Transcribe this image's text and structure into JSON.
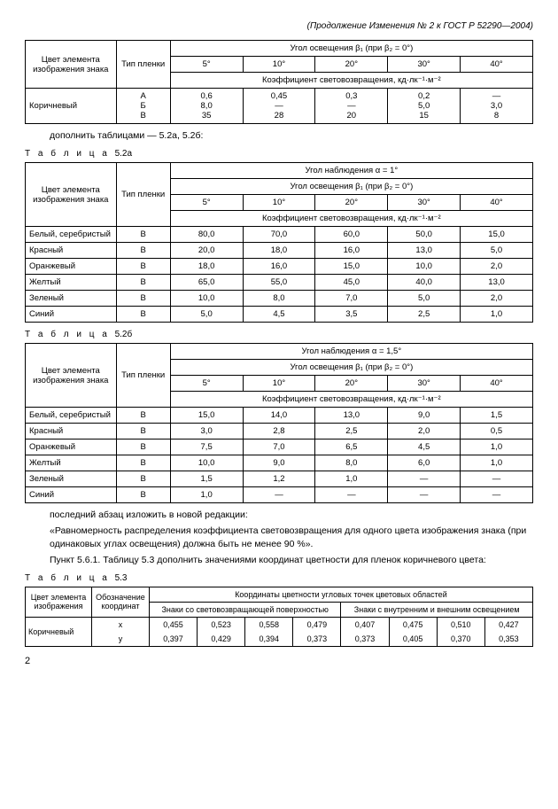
{
  "header_note": "(Продолжение Изменения № 2 к ГОСТ Р 52290—2004)",
  "common_headers": {
    "color_el": "Цвет элемента изображения знака",
    "film_type": "Тип пленки",
    "angle_line": "Угол освещения β₁ (при β₂ = 0°)",
    "coef_line": "Коэффициент световозвращения, кд·лк⁻¹·м⁻²",
    "angles": [
      "5°",
      "10°",
      "20°",
      "30°",
      "40°"
    ]
  },
  "table1": {
    "row_color": "Коричневый",
    "types": [
      "А",
      "Б",
      "В"
    ],
    "cells": [
      [
        "0,6",
        "0,45",
        "0,3",
        "0,2",
        "—"
      ],
      [
        "8,0",
        "—",
        "—",
        "5,0",
        "3,0"
      ],
      [
        "35",
        "28",
        "20",
        "15",
        "8"
      ]
    ]
  },
  "para_add": "дополнить таблицами — 5.2а, 5.2б:",
  "label_52a": "Т а б л и ц а",
  "num_52a": "5.2а",
  "t52a": {
    "obs": "Угол наблюдения α = 1°",
    "rows": [
      {
        "color": "Белый, серебристый",
        "type": "В",
        "v": [
          "80,0",
          "70,0",
          "60,0",
          "50,0",
          "15,0"
        ]
      },
      {
        "color": "Красный",
        "type": "В",
        "v": [
          "20,0",
          "18,0",
          "16,0",
          "13,0",
          "5,0"
        ]
      },
      {
        "color": "Оранжевый",
        "type": "В",
        "v": [
          "18,0",
          "16,0",
          "15,0",
          "10,0",
          "2,0"
        ]
      },
      {
        "color": "Желтый",
        "type": "В",
        "v": [
          "65,0",
          "55,0",
          "45,0",
          "40,0",
          "13,0"
        ]
      },
      {
        "color": "Зеленый",
        "type": "В",
        "v": [
          "10,0",
          "8,0",
          "7,0",
          "5,0",
          "2,0"
        ]
      },
      {
        "color": "Синий",
        "type": "В",
        "v": [
          "5,0",
          "4,5",
          "3,5",
          "2,5",
          "1,0"
        ]
      }
    ]
  },
  "label_52b": "Т а б л и ц а",
  "num_52b": "5.2б",
  "t52b": {
    "obs": "Угол наблюдения α = 1,5°",
    "rows": [
      {
        "color": "Белый, серебристый",
        "type": "В",
        "v": [
          "15,0",
          "14,0",
          "13,0",
          "9,0",
          "1,5"
        ]
      },
      {
        "color": "Красный",
        "type": "В",
        "v": [
          "3,0",
          "2,8",
          "2,5",
          "2,0",
          "0,5"
        ]
      },
      {
        "color": "Оранжевый",
        "type": "В",
        "v": [
          "7,5",
          "7,0",
          "6,5",
          "4,5",
          "1,0"
        ]
      },
      {
        "color": "Желтый",
        "type": "В",
        "v": [
          "10,0",
          "9,0",
          "8,0",
          "6,0",
          "1,0"
        ]
      },
      {
        "color": "Зеленый",
        "type": "В",
        "v": [
          "1,5",
          "1,2",
          "1,0",
          "—",
          "—"
        ]
      },
      {
        "color": "Синий",
        "type": "В",
        "v": [
          "1,0",
          "—",
          "—",
          "—",
          "—"
        ]
      }
    ]
  },
  "para_last1": "последний абзац изложить в новой редакции:",
  "para_last2": "«Равномерность распределения коэффициента световозвращения для одного цвета изображения знака (при одинаковых углах освещения) должна быть не менее 90 %».",
  "para_last3": "Пункт 5.6.1. Таблицу 5.3 дополнить значениями координат цветности для пленок коричневого цвета:",
  "label_53": "Т а б л и ц а",
  "num_53": "5.3",
  "t53": {
    "h_coord": "Координаты цветности угловых точек цветовых областей",
    "h_ret": "Знаки со световозвращающей поверхностью",
    "h_int": "Знаки с внутренним и внешним освещением",
    "h_color": "Цвет элемента изображения",
    "h_desig": "Обозначение координат",
    "row_color": "Коричневый",
    "xy_label_x": "x",
    "xy_label_y": "y",
    "x": [
      "0,455",
      "0,523",
      "0,558",
      "0,479",
      "0,407",
      "0,475",
      "0,510",
      "0,427"
    ],
    "y": [
      "0,397",
      "0,429",
      "0,394",
      "0,373",
      "0,373",
      "0,405",
      "0,370",
      "0,353"
    ]
  },
  "pagenum": "2"
}
